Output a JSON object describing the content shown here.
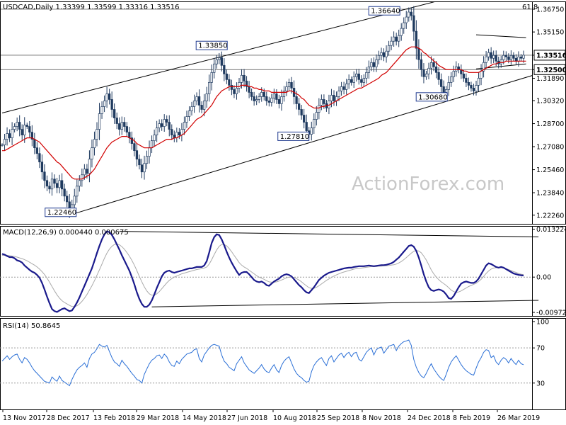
{
  "chart_data": {
    "type": "line",
    "subtype": "candlestick",
    "symbol": "USDCAD",
    "price_header": "USDCAD,Daily  1.33399 1.33599 1.33316 1.33516",
    "watermark": "ActionForex.com",
    "corner_label": "61.8",
    "x_tick_labels": [
      "13 Nov 2017",
      "28 Dec 2017",
      "13 Feb 2018",
      "29 Mar 2018",
      "14 May 2018",
      "27 Jun 2018",
      "10 Aug 2018",
      "25 Sep 2018",
      "8 Nov 2018",
      "24 Dec 2018",
      "8 Feb 2019",
      "26 Mar 2019"
    ],
    "price_panel": {
      "ylim": [
        1.2165,
        1.373
      ],
      "y_tick_labels": [
        "1.36750",
        "1.35150",
        "1.33516",
        "1.32500",
        "1.31890",
        "1.30320",
        "1.28700",
        "1.27080",
        "1.25460",
        "1.23840",
        "1.22260"
      ],
      "y_tick_values": [
        1.3675,
        1.3515,
        1.33516,
        1.325,
        1.3189,
        1.3032,
        1.287,
        1.2708,
        1.2546,
        1.2384,
        1.2226
      ],
      "highlighted_labels": [
        "1.33516",
        "1.32500"
      ],
      "horizontal_lines": [
        1.3675,
        1.33516,
        1.325
      ],
      "callouts": [
        {
          "text": "1.22460",
          "date": "28 Dec 2017",
          "value": 1.2246
        },
        {
          "text": "1.33850",
          "date": "27 Jun 2018",
          "value": 1.3385
        },
        {
          "text": "1.27810",
          "date": "25 Sep 2018",
          "value": 1.2781
        },
        {
          "text": "1.36640",
          "date": "24 Dec 2018",
          "value": 1.3664
        },
        {
          "text": "1.30680",
          "date": "8 Feb 2019",
          "value": 1.3068
        }
      ],
      "closes": [
        1.272,
        1.276,
        1.28,
        1.277,
        1.283,
        1.285,
        1.288,
        1.283,
        1.279,
        1.286,
        1.285,
        1.281,
        1.276,
        1.27,
        1.266,
        1.26,
        1.253,
        1.247,
        1.243,
        1.241,
        1.248,
        1.245,
        1.242,
        1.247,
        1.241,
        1.236,
        1.232,
        1.226,
        1.23,
        1.236,
        1.243,
        1.247,
        1.251,
        1.255,
        1.252,
        1.262,
        1.27,
        1.276,
        1.283,
        1.294,
        1.299,
        1.303,
        1.308,
        1.304,
        1.297,
        1.291,
        1.287,
        1.283,
        1.288,
        1.285,
        1.281,
        1.277,
        1.273,
        1.268,
        1.262,
        1.258,
        1.253,
        1.259,
        1.264,
        1.27,
        1.275,
        1.279,
        1.284,
        1.287,
        1.285,
        1.29,
        1.288,
        1.283,
        1.279,
        1.277,
        1.281,
        1.279,
        1.283,
        1.288,
        1.292,
        1.296,
        1.299,
        1.303,
        1.306,
        1.3,
        1.297,
        1.303,
        1.308,
        1.316,
        1.323,
        1.329,
        1.332,
        1.3335,
        1.328,
        1.322,
        1.318,
        1.314,
        1.311,
        1.308,
        1.312,
        1.316,
        1.321,
        1.317,
        1.313,
        1.309,
        1.306,
        1.303,
        1.304,
        1.306,
        1.309,
        1.306,
        1.303,
        1.302,
        1.305,
        1.308,
        1.304,
        1.301,
        1.306,
        1.31,
        1.313,
        1.316,
        1.312,
        1.306,
        1.301,
        1.297,
        1.293,
        1.288,
        1.282,
        1.2795,
        1.284,
        1.29,
        1.295,
        1.3,
        1.304,
        1.301,
        1.298,
        1.303,
        1.307,
        1.303,
        1.306,
        1.31,
        1.313,
        1.311,
        1.315,
        1.318,
        1.316,
        1.32,
        1.322,
        1.318,
        1.316,
        1.319,
        1.323,
        1.327,
        1.33,
        1.327,
        1.332,
        1.335,
        1.337,
        1.334,
        1.338,
        1.342,
        1.345,
        1.348,
        1.345,
        1.349,
        1.354,
        1.358,
        1.362,
        1.3655,
        1.363,
        1.352,
        1.34,
        1.332,
        1.325,
        1.32,
        1.322,
        1.326,
        1.33,
        1.327,
        1.323,
        1.318,
        1.313,
        1.309,
        1.311,
        1.316,
        1.32,
        1.324,
        1.327,
        1.325,
        1.322,
        1.319,
        1.316,
        1.314,
        1.312,
        1.31,
        1.314,
        1.319,
        1.324,
        1.33,
        1.334,
        1.337,
        1.333,
        1.335,
        1.331,
        1.329,
        1.332,
        1.335,
        1.334,
        1.332,
        1.335,
        1.333,
        1.331,
        1.334,
        1.333,
        1.33516
      ],
      "sma": [
        1.268,
        1.268,
        1.269,
        1.27,
        1.271,
        1.272,
        1.273,
        1.274,
        1.275,
        1.276,
        1.277,
        1.277,
        1.277,
        1.276,
        1.275,
        1.274,
        1.272,
        1.27,
        1.268,
        1.266,
        1.264,
        1.262,
        1.26,
        1.259,
        1.257,
        1.255,
        1.253,
        1.251,
        1.249,
        1.248,
        1.248,
        1.248,
        1.248,
        1.249,
        1.25,
        1.251,
        1.253,
        1.255,
        1.258,
        1.261,
        1.264,
        1.267,
        1.27,
        1.272,
        1.274,
        1.275,
        1.276,
        1.277,
        1.278,
        1.278,
        1.278,
        1.277,
        1.276,
        1.275,
        1.273,
        1.272,
        1.271,
        1.27,
        1.27,
        1.27,
        1.27,
        1.271,
        1.272,
        1.273,
        1.274,
        1.275,
        1.276,
        1.276,
        1.276,
        1.277,
        1.277,
        1.278,
        1.279,
        1.28,
        1.282,
        1.284,
        1.286,
        1.288,
        1.29,
        1.291,
        1.292,
        1.294,
        1.296,
        1.298,
        1.3,
        1.303,
        1.306,
        1.308,
        1.31,
        1.311,
        1.312,
        1.313,
        1.313,
        1.313,
        1.313,
        1.313,
        1.314,
        1.314,
        1.314,
        1.313,
        1.313,
        1.312,
        1.312,
        1.311,
        1.311,
        1.31,
        1.31,
        1.31,
        1.309,
        1.309,
        1.309,
        1.309,
        1.309,
        1.309,
        1.309,
        1.31,
        1.31,
        1.309,
        1.308,
        1.307,
        1.305,
        1.304,
        1.302,
        1.3,
        1.299,
        1.298,
        1.298,
        1.298,
        1.299,
        1.299,
        1.3,
        1.3,
        1.301,
        1.302,
        1.303,
        1.304,
        1.305,
        1.306,
        1.307,
        1.308,
        1.309,
        1.31,
        1.311,
        1.312,
        1.312,
        1.313,
        1.314,
        1.315,
        1.316,
        1.317,
        1.318,
        1.319,
        1.321,
        1.322,
        1.323,
        1.325,
        1.327,
        1.329,
        1.331,
        1.333,
        1.335,
        1.337,
        1.339,
        1.34,
        1.341,
        1.341,
        1.341,
        1.34,
        1.339,
        1.337,
        1.336,
        1.334,
        1.333,
        1.331,
        1.33,
        1.328,
        1.327,
        1.326,
        1.325,
        1.325,
        1.325,
        1.325,
        1.325,
        1.325,
        1.325,
        1.324,
        1.324,
        1.323,
        1.323,
        1.323,
        1.323,
        1.323,
        1.324,
        1.325,
        1.326,
        1.327,
        1.328,
        1.329,
        1.329,
        1.33,
        1.33,
        1.33,
        1.331,
        1.331,
        1.331,
        1.331,
        1.331,
        1.331,
        1.331,
        1.331,
        1.331
      ],
      "channel_upper": {
        "from": [
          0,
          1.2945
        ],
        "to": [
          175,
          1.3735
        ]
      },
      "channel_lower": {
        "from": [
          28,
          1.2232
        ],
        "to": [
          215,
          1.3222
        ]
      },
      "triangle_upper": {
        "from": [
          190,
          1.3495
        ],
        "to": [
          210,
          1.3475
        ]
      },
      "triangle_lower": {
        "from": [
          190,
          1.3255
        ],
        "to": [
          210,
          1.329
        ]
      }
    },
    "macd_panel": {
      "label": "MACD(12,26,9) 0.000440 0.000675",
      "ylim": [
        -0.0107,
        0.0141
      ],
      "y_tick_labels": [
        "0.013224",
        "0.00",
        "-0.009721"
      ],
      "y_tick_values": [
        0.013224,
        0.0,
        -0.009721
      ],
      "macd": [
        0.0064,
        0.0062,
        0.0058,
        0.0055,
        0.0055,
        0.0052,
        0.0046,
        0.0044,
        0.004,
        0.0032,
        0.0026,
        0.002,
        0.0015,
        0.0012,
        0.0006,
        -0.0002,
        -0.0016,
        -0.0034,
        -0.0054,
        -0.0072,
        -0.0088,
        -0.0094,
        -0.0096,
        -0.0092,
        -0.0088,
        -0.0086,
        -0.009,
        -0.0094,
        -0.0092,
        -0.0082,
        -0.007,
        -0.0056,
        -0.004,
        -0.0024,
        -0.0008,
        0.0008,
        0.0024,
        0.0045,
        0.0066,
        0.0086,
        0.0104,
        0.0118,
        0.0126,
        0.0124,
        0.0116,
        0.0104,
        0.009,
        0.0076,
        0.006,
        0.0046,
        0.0032,
        0.0018,
        0.0,
        -0.002,
        -0.0042,
        -0.006,
        -0.0074,
        -0.0082,
        -0.0082,
        -0.0076,
        -0.0064,
        -0.0048,
        -0.003,
        -0.0014,
        0.0002,
        0.0012,
        0.0016,
        0.0018,
        0.0014,
        0.0012,
        0.0014,
        0.0016,
        0.0018,
        0.002,
        0.0022,
        0.0024,
        0.0024,
        0.0026,
        0.0028,
        0.0028,
        0.0028,
        0.0032,
        0.0044,
        0.0068,
        0.0094,
        0.011,
        0.0118,
        0.0116,
        0.0104,
        0.0088,
        0.007,
        0.0054,
        0.004,
        0.0028,
        0.0016,
        0.0006,
        0.0012,
        0.0014,
        0.0014,
        0.0008,
        0.0,
        -0.0008,
        -0.0012,
        -0.0014,
        -0.0012,
        -0.0016,
        -0.0022,
        -0.0024,
        -0.0018,
        -0.0012,
        -0.0008,
        -0.0004,
        0.0002,
        0.0006,
        0.0008,
        0.0006,
        0.0002,
        -0.0006,
        -0.0014,
        -0.0022,
        -0.0028,
        -0.0036,
        -0.0042,
        -0.0044,
        -0.0036,
        -0.0028,
        -0.0018,
        -0.0008,
        -0.0002,
        0.0004,
        0.0008,
        0.0012,
        0.0014,
        0.0016,
        0.0018,
        0.002,
        0.0022,
        0.0024,
        0.0025,
        0.0026,
        0.0026,
        0.0028,
        0.0029,
        0.003,
        0.003,
        0.003,
        0.0031,
        0.0032,
        0.0031,
        0.003,
        0.0031,
        0.0032,
        0.0033,
        0.0033,
        0.0034,
        0.0036,
        0.0038,
        0.0042,
        0.0048,
        0.0054,
        0.0062,
        0.007,
        0.0078,
        0.0086,
        0.0088,
        0.0084,
        0.0072,
        0.0054,
        0.0032,
        0.0008,
        -0.0012,
        -0.0028,
        -0.0036,
        -0.0038,
        -0.0036,
        -0.0034,
        -0.0036,
        -0.004,
        -0.0048,
        -0.0058,
        -0.006,
        -0.0052,
        -0.004,
        -0.0028,
        -0.0018,
        -0.0014,
        -0.0012,
        -0.0014,
        -0.0016,
        -0.0016,
        -0.0012,
        -0.0004,
        0.0008,
        0.002,
        0.0032,
        0.0038,
        0.0036,
        0.0032,
        0.0028,
        0.0026,
        0.0028,
        0.0026,
        0.0022,
        0.0018,
        0.0014,
        0.001,
        0.0008,
        0.0006,
        0.0005,
        0.00044
      ],
      "signal": [
        0.006,
        0.006,
        0.006,
        0.0059,
        0.0058,
        0.0057,
        0.0055,
        0.0053,
        0.0051,
        0.0048,
        0.0045,
        0.0041,
        0.0037,
        0.0033,
        0.0028,
        0.0022,
        0.0015,
        0.0007,
        -0.0003,
        -0.0014,
        -0.0026,
        -0.0038,
        -0.0049,
        -0.0058,
        -0.0065,
        -0.007,
        -0.0074,
        -0.0078,
        -0.0081,
        -0.0081,
        -0.0079,
        -0.0074,
        -0.0067,
        -0.0058,
        -0.0048,
        -0.0036,
        -0.0024,
        -0.001,
        0.0005,
        0.002,
        0.0036,
        0.0052,
        0.0066,
        0.0077,
        0.0085,
        0.009,
        0.0091,
        0.0089,
        0.0084,
        0.0077,
        0.0068,
        0.0058,
        0.0046,
        0.0033,
        0.0018,
        0.0002,
        -0.0013,
        -0.0027,
        -0.0038,
        -0.0046,
        -0.005,
        -0.005,
        -0.0046,
        -0.004,
        -0.0032,
        -0.0024,
        -0.0016,
        -0.0009,
        -0.0004,
        0.0,
        0.0003,
        0.0006,
        0.0009,
        0.0011,
        0.0013,
        0.0015,
        0.0017,
        0.0019,
        0.0021,
        0.0022,
        0.0023,
        0.0025,
        0.0028,
        0.0036,
        0.0048,
        0.0062,
        0.0075,
        0.0085,
        0.009,
        0.009,
        0.0086,
        0.0079,
        0.007,
        0.006,
        0.005,
        0.004,
        0.0033,
        0.0028,
        0.0024,
        0.0019,
        0.0014,
        0.0009,
        0.0004,
        0.0,
        -0.0003,
        -0.0006,
        -0.001,
        -0.0013,
        -0.0014,
        -0.0014,
        -0.0013,
        -0.0011,
        -0.0008,
        -0.0005,
        -0.0002,
        0.0,
        0.0,
        -0.0001,
        -0.0004,
        -0.0008,
        -0.0013,
        -0.0019,
        -0.0024,
        -0.0029,
        -0.0031,
        -0.0031,
        -0.0028,
        -0.0024,
        -0.0019,
        -0.0014,
        -0.0009,
        -0.0005,
        -0.0001,
        0.0003,
        0.0006,
        0.0009,
        0.0012,
        0.0014,
        0.0016,
        0.0018,
        0.002,
        0.0022,
        0.0023,
        0.0024,
        0.0025,
        0.0026,
        0.0027,
        0.0028,
        0.0029,
        0.0029,
        0.0029,
        0.003,
        0.003,
        0.0031,
        0.0031,
        0.0032,
        0.0033,
        0.0034,
        0.0036,
        0.0039,
        0.0043,
        0.0048,
        0.0054,
        0.006,
        0.0066,
        0.0071,
        0.0073,
        0.0072,
        0.0067,
        0.0058,
        0.0047,
        0.0034,
        0.002,
        0.0009,
        0.0,
        -0.0007,
        -0.0013,
        -0.0018,
        -0.0023,
        -0.0029,
        -0.0036,
        -0.004,
        -0.0042,
        -0.0041,
        -0.0038,
        -0.0034,
        -0.003,
        -0.0026,
        -0.0023,
        -0.002,
        -0.0017,
        -0.0012,
        -0.0006,
        0.0002,
        0.001,
        0.0017,
        0.0022,
        0.0025,
        0.0026,
        0.0026,
        0.0026,
        0.0025,
        0.0023,
        0.0021,
        0.0018,
        0.0015,
        0.0013,
        0.001,
        0.0008,
        0.000675
      ],
      "resistance": {
        "from": [
          47,
          0.0126
        ],
        "to": [
          215,
          0.0111
        ]
      },
      "support": {
        "from": [
          60,
          -0.0082
        ],
        "to": [
          215,
          -0.0064
        ]
      }
    },
    "rsi_panel": {
      "label": "RSI(14) 50.8645",
      "ylim": [
        0,
        100
      ],
      "y_tick_labels": [
        "100",
        "70",
        "30"
      ],
      "y_tick_values": [
        100,
        70,
        30
      ],
      "levels": [
        70,
        30
      ],
      "rsi": [
        55,
        58,
        61,
        57,
        60,
        62,
        63,
        57,
        53,
        59,
        57,
        53,
        48,
        44,
        41,
        38,
        35,
        32,
        31,
        30,
        37,
        34,
        32,
        38,
        33,
        31,
        29,
        27,
        34,
        40,
        45,
        48,
        50,
        53,
        48,
        58,
        63,
        65,
        69,
        74,
        72,
        71,
        73,
        66,
        59,
        54,
        52,
        49,
        56,
        52,
        49,
        45,
        41,
        38,
        34,
        33,
        30,
        40,
        46,
        52,
        56,
        58,
        61,
        62,
        58,
        63,
        60,
        54,
        50,
        49,
        55,
        52,
        57,
        60,
        63,
        64,
        65,
        68,
        69,
        58,
        54,
        62,
        66,
        70,
        73,
        74,
        73,
        72,
        62,
        55,
        52,
        48,
        46,
        44,
        52,
        56,
        60,
        53,
        49,
        45,
        43,
        41,
        44,
        47,
        51,
        46,
        43,
        42,
        47,
        51,
        45,
        42,
        50,
        55,
        58,
        60,
        53,
        46,
        41,
        38,
        36,
        33,
        31,
        32,
        43,
        50,
        54,
        57,
        59,
        54,
        50,
        58,
        61,
        54,
        58,
        62,
        64,
        59,
        63,
        65,
        60,
        64,
        65,
        57,
        55,
        60,
        65,
        68,
        70,
        62,
        68,
        70,
        71,
        64,
        68,
        72,
        73,
        74,
        67,
        72,
        75,
        77,
        78,
        79,
        73,
        57,
        48,
        42,
        38,
        36,
        41,
        47,
        52,
        46,
        42,
        38,
        35,
        33,
        40,
        48,
        54,
        58,
        61,
        56,
        51,
        47,
        44,
        42,
        40,
        39,
        47,
        54,
        59,
        65,
        68,
        67,
        59,
        61,
        54,
        51,
        56,
        59,
        57,
        53,
        58,
        54,
        51,
        56,
        52,
        50.8645
      ]
    }
  }
}
